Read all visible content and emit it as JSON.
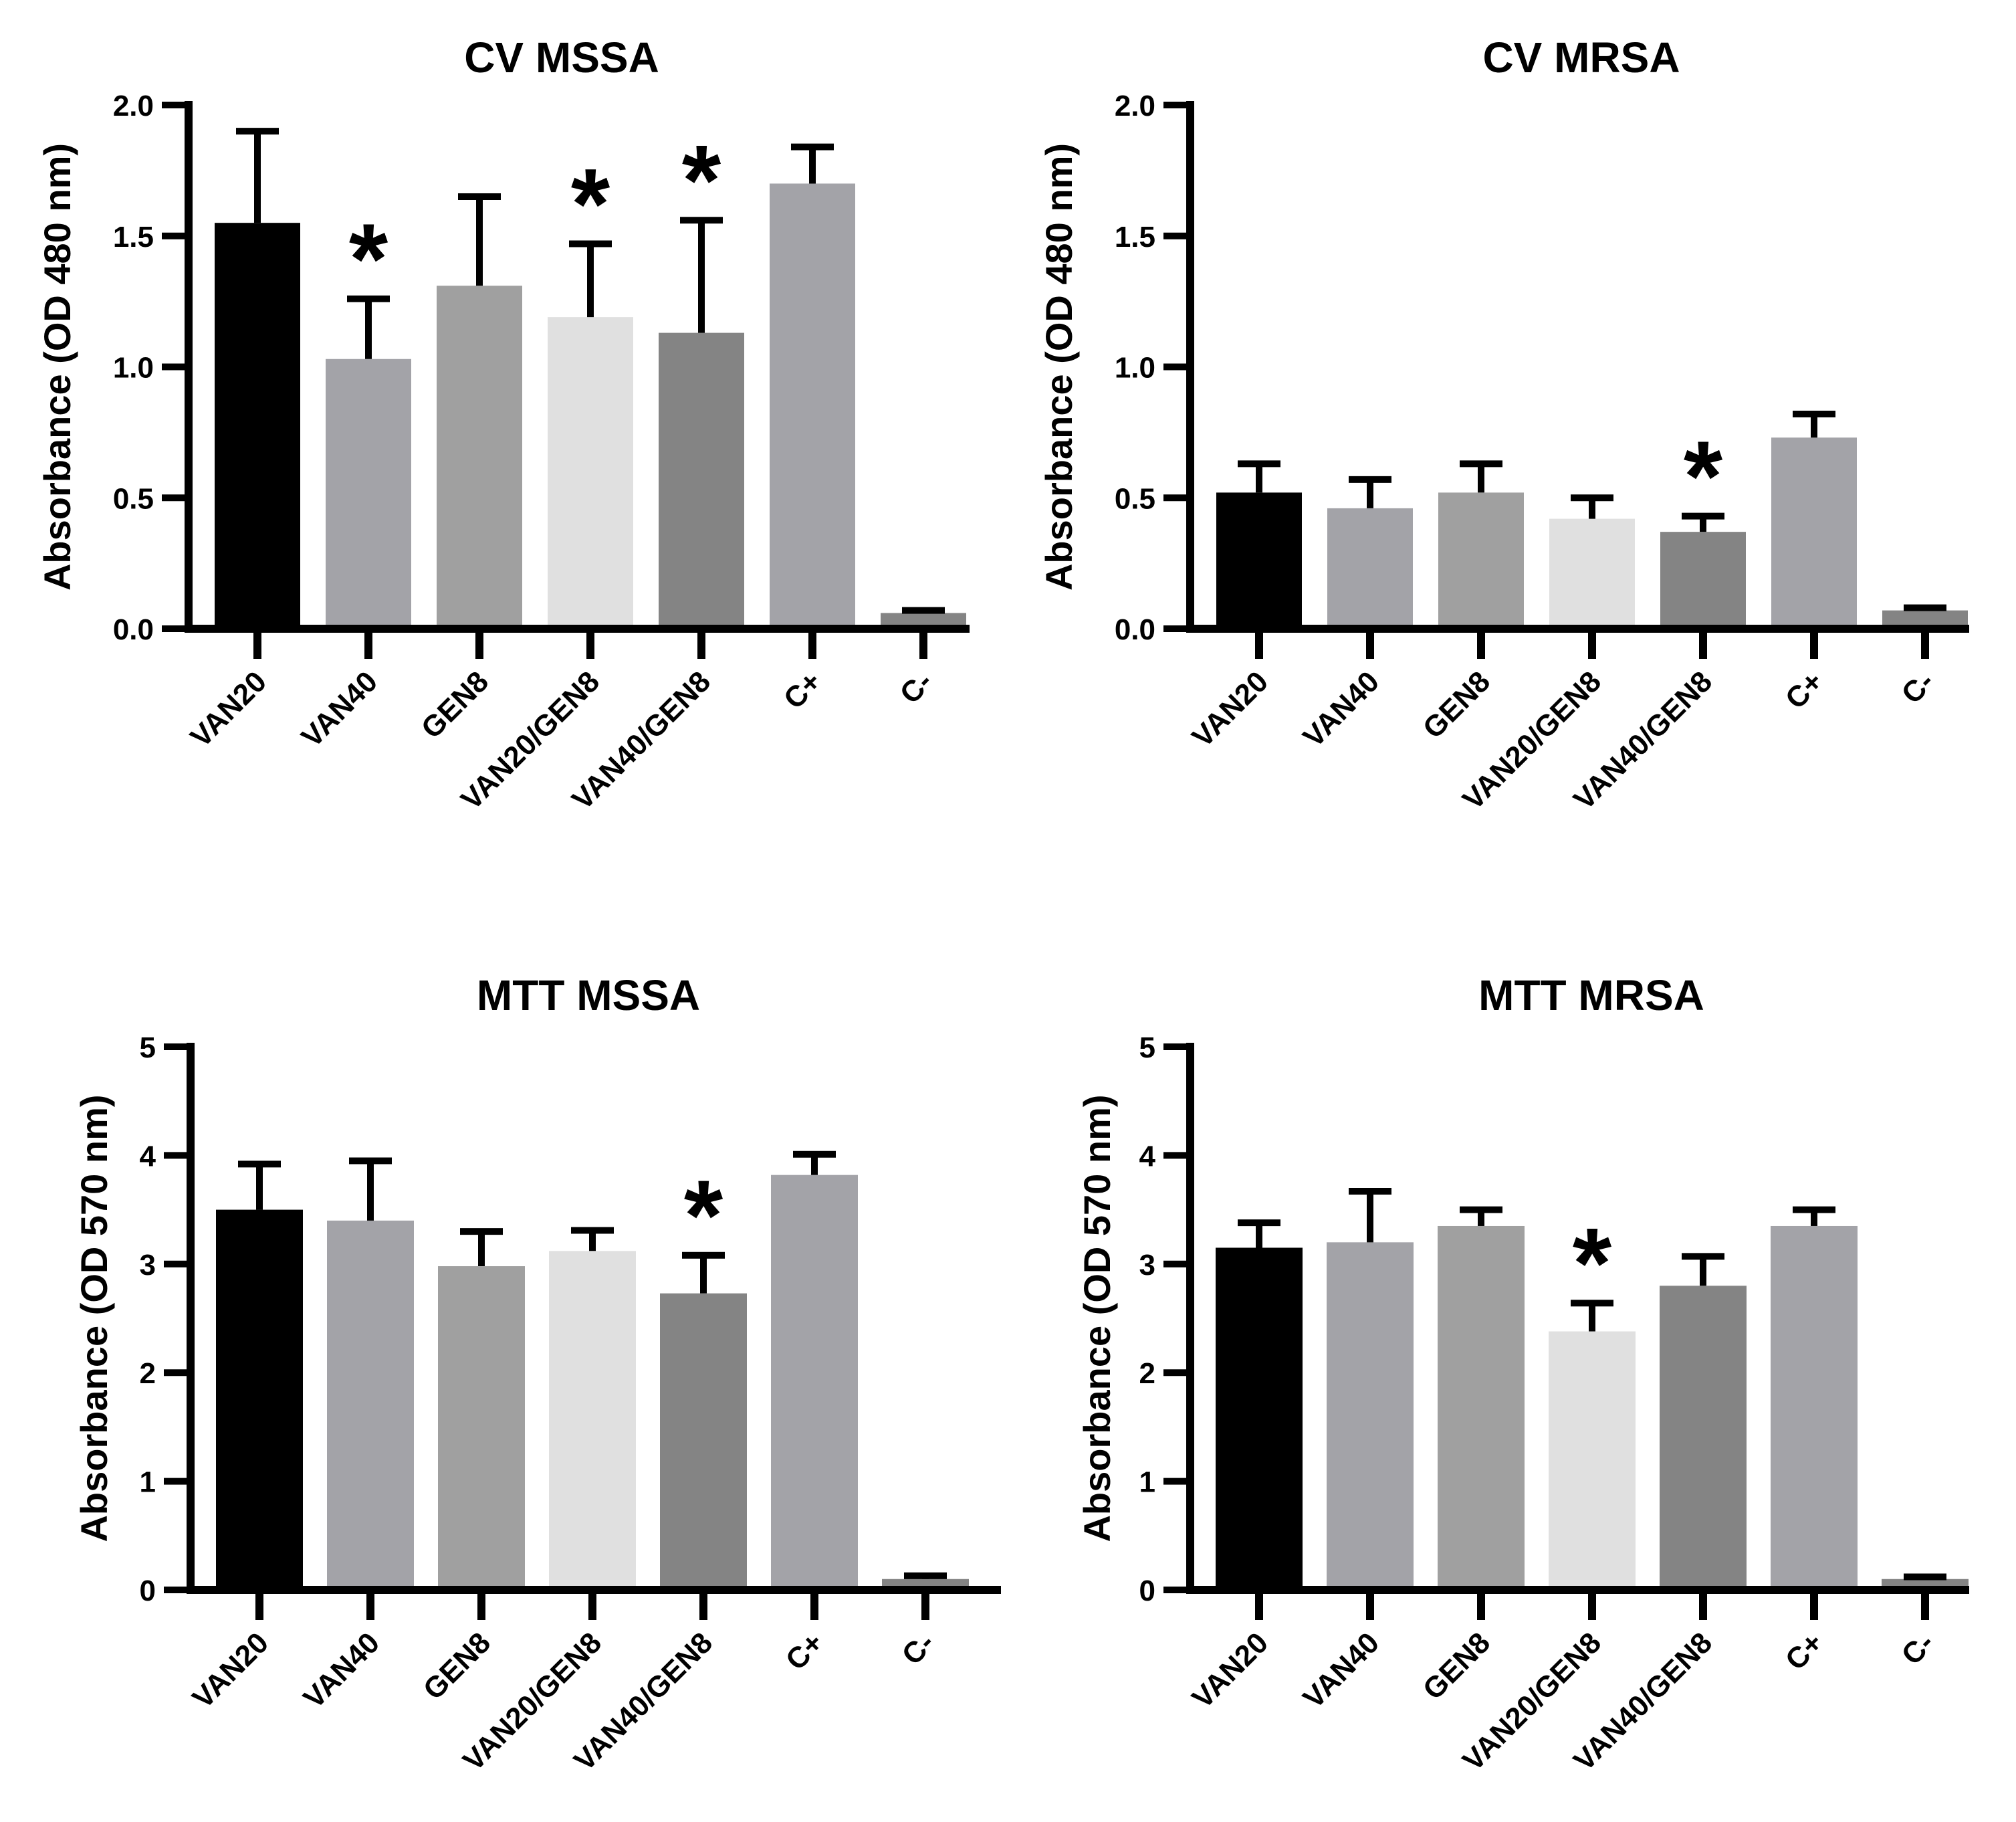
{
  "chart_data": [
    {
      "type": "bar",
      "title": "CV MSSA",
      "ylabel": "Absorbance (OD 480 nm)",
      "xlabel": "",
      "ylim": [
        0,
        2.0
      ],
      "yticks": [
        "0.0",
        "0.5",
        "1.0",
        "1.5",
        "2.0"
      ],
      "yticks_values": [
        0,
        0.5,
        1.0,
        1.5,
        2.0
      ],
      "categories": [
        "VAN20",
        "VAN40",
        "GEN8",
        "VAN20/GEN8",
        "VAN40/GEN8",
        "C+",
        "C-"
      ],
      "values": [
        1.55,
        1.03,
        1.31,
        1.19,
        1.13,
        1.7,
        0.06
      ],
      "errors": [
        0.35,
        0.23,
        0.34,
        0.28,
        0.43,
        0.14,
        0.01
      ],
      "significant": [
        false,
        true,
        false,
        true,
        true,
        false,
        false
      ],
      "annotation_symbol": "*",
      "colors": [
        "#000000",
        "#a3a3a8",
        "#a0a0a0",
        "#e0e0e0",
        "#848484",
        "#a3a3a8",
        "#848484"
      ]
    },
    {
      "type": "bar",
      "title": "CV MRSA",
      "ylabel": "Absorbance (OD 480 nm)",
      "xlabel": "",
      "ylim": [
        0,
        2.0
      ],
      "yticks": [
        "0.0",
        "0.5",
        "1.0",
        "1.5",
        "2.0"
      ],
      "yticks_values": [
        0,
        0.5,
        1.0,
        1.5,
        2.0
      ],
      "categories": [
        "VAN20",
        "VAN40",
        "GEN8",
        "VAN20/GEN8",
        "VAN40/GEN8",
        "C+",
        "C-"
      ],
      "values": [
        0.52,
        0.46,
        0.52,
        0.42,
        0.37,
        0.73,
        0.07
      ],
      "errors": [
        0.11,
        0.11,
        0.11,
        0.08,
        0.06,
        0.09,
        0.01
      ],
      "significant": [
        false,
        false,
        false,
        false,
        true,
        false,
        false
      ],
      "annotation_symbol": "*",
      "colors": [
        "#000000",
        "#a3a3a8",
        "#a0a0a0",
        "#e0e0e0",
        "#848484",
        "#a3a3a8",
        "#848484"
      ]
    },
    {
      "type": "bar",
      "title": "MTT MSSA",
      "ylabel": "Absorbance (OD 570 nm)",
      "xlabel": "",
      "ylim": [
        0,
        5
      ],
      "yticks": [
        "0",
        "1",
        "2",
        "3",
        "4",
        "5"
      ],
      "yticks_values": [
        0,
        1,
        2,
        3,
        4,
        5
      ],
      "categories": [
        "VAN20",
        "VAN40",
        "GEN8",
        "VAN20/GEN8",
        "VAN40/GEN8",
        "C+",
        "C-"
      ],
      "values": [
        3.5,
        3.4,
        2.98,
        3.12,
        2.73,
        3.82,
        0.1
      ],
      "errors": [
        0.42,
        0.55,
        0.32,
        0.19,
        0.35,
        0.19,
        0.03
      ],
      "significant": [
        false,
        false,
        false,
        false,
        true,
        false,
        false
      ],
      "annotation_symbol": "*",
      "colors": [
        "#000000",
        "#a3a3a8",
        "#a0a0a0",
        "#e0e0e0",
        "#848484",
        "#a3a3a8",
        "#848484"
      ]
    },
    {
      "type": "bar",
      "title": "MTT MRSA",
      "ylabel": "Absorbance (OD 570 nm)",
      "xlabel": "",
      "ylim": [
        0,
        5
      ],
      "yticks": [
        "0",
        "1",
        "2",
        "3",
        "4",
        "5"
      ],
      "yticks_values": [
        0,
        1,
        2,
        3,
        4,
        5
      ],
      "categories": [
        "VAN20",
        "VAN40",
        "GEN8",
        "VAN20/GEN8",
        "VAN40/GEN8",
        "C+",
        "C-"
      ],
      "values": [
        3.15,
        3.2,
        3.35,
        2.38,
        2.8,
        3.35,
        0.1
      ],
      "errors": [
        0.23,
        0.47,
        0.15,
        0.26,
        0.27,
        0.15,
        0.02
      ],
      "significant": [
        false,
        false,
        false,
        true,
        false,
        false,
        false
      ],
      "annotation_symbol": "*",
      "colors": [
        "#000000",
        "#a3a3a8",
        "#a0a0a0",
        "#e0e0e0",
        "#848484",
        "#a3a3a8",
        "#848484"
      ]
    }
  ]
}
